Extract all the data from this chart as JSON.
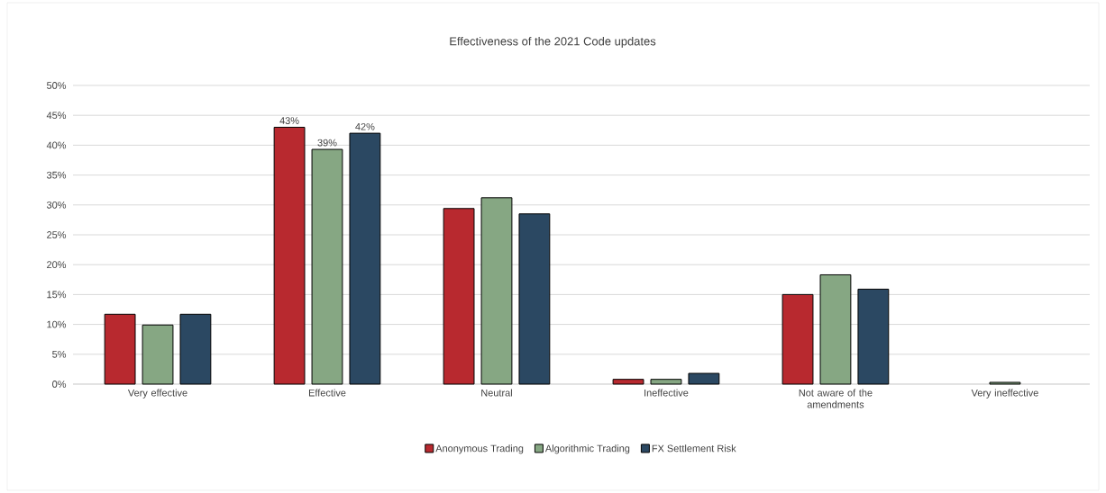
{
  "chart_data": {
    "type": "bar",
    "title": "Effectiveness of the 2021 Code updates",
    "categories": [
      "Very effective",
      "Effective",
      "Neutral",
      "Ineffective",
      "Not aware of the amendments",
      "Very ineffective"
    ],
    "series": [
      {
        "name": "Anonymous Trading",
        "color": "#b8292f",
        "values": [
          11.7,
          43,
          29.4,
          0.8,
          15.0,
          null
        ],
        "value_labels": [
          null,
          "43%",
          null,
          null,
          null,
          null
        ]
      },
      {
        "name": "Algorithmic Trading",
        "color": "#86a783",
        "values": [
          9.9,
          39.3,
          31.2,
          0.8,
          18.3,
          0.3
        ],
        "value_labels": [
          null,
          "39%",
          null,
          null,
          null,
          null
        ]
      },
      {
        "name": "FX Settlement Risk",
        "color": "#2b4862",
        "values": [
          11.7,
          42,
          28.5,
          1.8,
          15.9,
          null
        ],
        "value_labels": [
          null,
          "42%",
          null,
          null,
          null,
          null
        ]
      }
    ],
    "ylim": [
      0,
      50
    ],
    "yticks": [
      {
        "value": 0,
        "label": "0%"
      },
      {
        "value": 5,
        "label": "5%"
      },
      {
        "value": 10,
        "label": "10%"
      },
      {
        "value": 15,
        "label": "15%"
      },
      {
        "value": 20,
        "label": "20%"
      },
      {
        "value": 25,
        "label": "25%"
      },
      {
        "value": 30,
        "label": "30%"
      },
      {
        "value": 35,
        "label": "35%"
      },
      {
        "value": 40,
        "label": "40%"
      },
      {
        "value": 45,
        "label": "45%"
      },
      {
        "value": 50,
        "label": "50%"
      }
    ],
    "grid": "y",
    "legend": "bottom"
  }
}
